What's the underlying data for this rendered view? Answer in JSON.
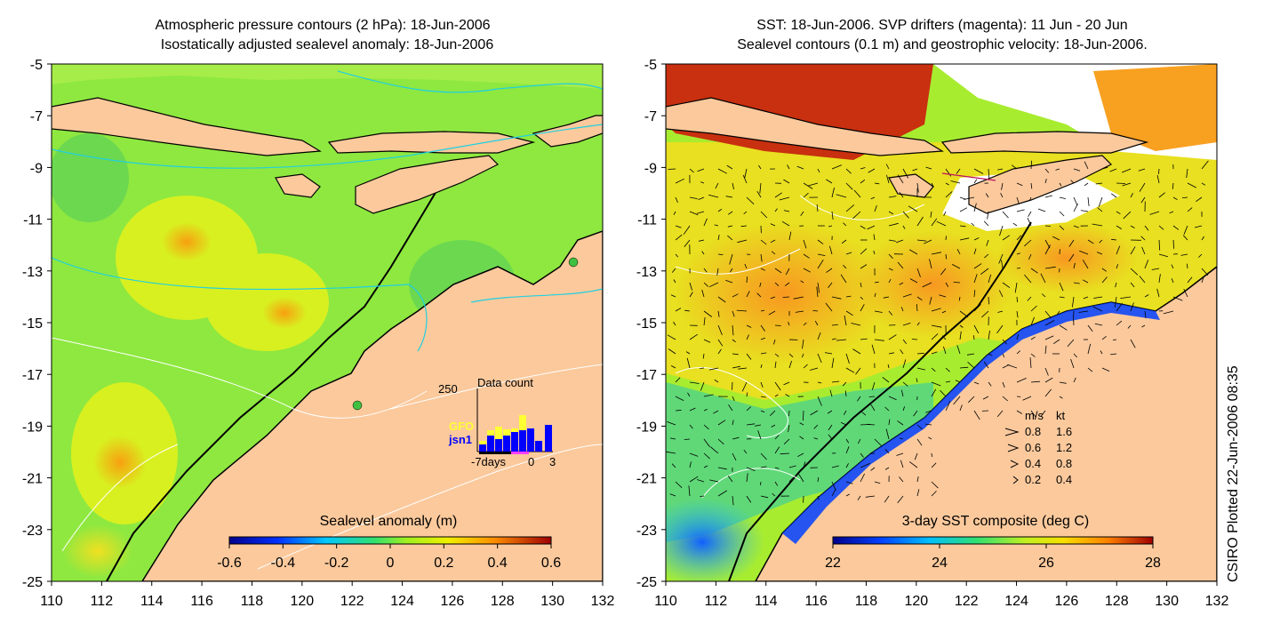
{
  "left_panel": {
    "title_line1": "Atmospheric pressure contours (2 hPa): 18-Jun-2006",
    "title_line2": "Isostatically adjusted sealevel anomaly: 18-Jun-2006",
    "colorbar_title": "Sealevel anomaly (m)",
    "colorbar_ticks": [
      "-0.6",
      "-0.4",
      "-0.2",
      "0",
      "0.2",
      "0.4",
      "0.6"
    ],
    "histogram": {
      "title": "Data count",
      "ymax_label": "250",
      "series_labels": [
        "GFO",
        "jsn1"
      ],
      "series_colors": [
        "#ffff33",
        "#0000ff"
      ],
      "x_labels": [
        "-7days",
        "0",
        "3"
      ]
    }
  },
  "right_panel": {
    "title_line1": "SST: 18-Jun-2006. SVP drifters (magenta): 11 Jun - 20 Jun",
    "title_line2": "Sealevel contours (0.1 m) and geostrophic velocity: 18-Jun-2006.",
    "colorbar_title": "3-day SST composite (deg C)",
    "colorbar_ticks": [
      "22",
      "24",
      "26",
      "28"
    ],
    "velocity_legend": {
      "header_ms": "m/s",
      "header_kt": "kt",
      "rows": [
        {
          "ms": "0.8",
          "kt": "1.6"
        },
        {
          "ms": "0.6",
          "kt": "1.2"
        },
        {
          "ms": "0.4",
          "kt": "0.8"
        },
        {
          "ms": "0.2",
          "kt": "0.4"
        }
      ]
    }
  },
  "axes": {
    "lat_ticks": [
      "-5",
      "-7",
      "-9",
      "-11",
      "-13",
      "-15",
      "-17",
      "-19",
      "-21",
      "-23",
      "-25"
    ],
    "lon_ticks": [
      "110",
      "112",
      "114",
      "116",
      "118",
      "120",
      "122",
      "124",
      "126",
      "128",
      "130",
      "132"
    ]
  },
  "side_label": "CSIRO Plotted 22-Jun-2006 08:35",
  "colors": {
    "land": "#fbc99c",
    "ocean_green": "#7ee040",
    "ocean_yellow": "#d8f020",
    "sst_orange": "#f8b020",
    "coast": "#000000"
  }
}
